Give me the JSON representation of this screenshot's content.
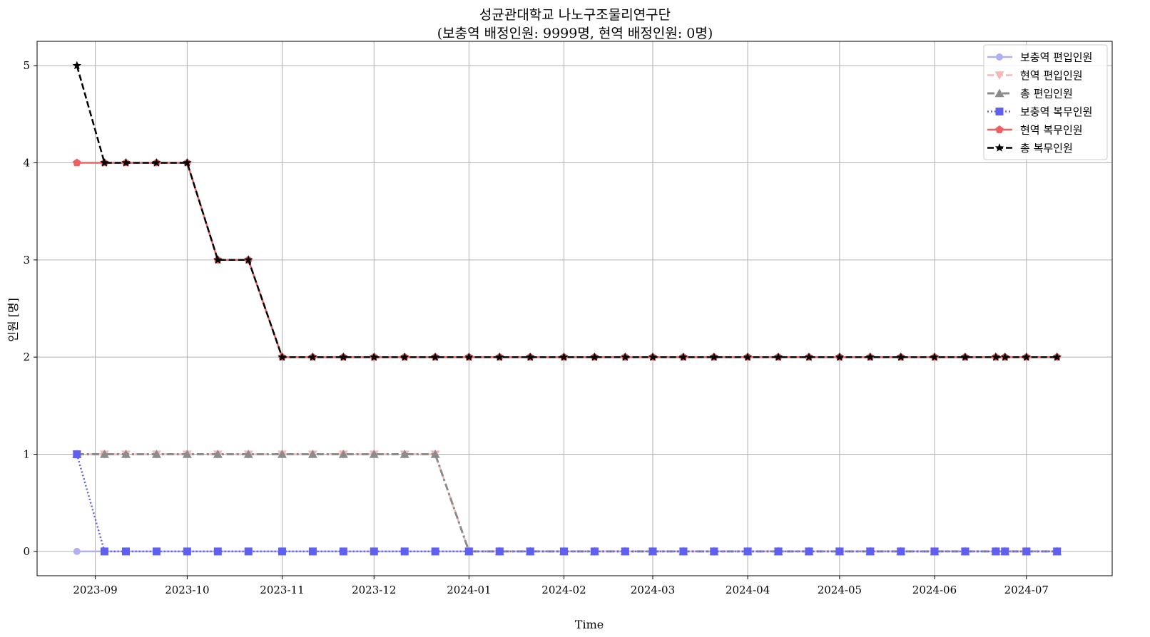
{
  "chart_data": {
    "type": "line",
    "title": "성균관대학교 나노구조물리연구단",
    "subtitle": "(보충역 배정인원: 9999명, 현역 배정인원: 0명)",
    "xlabel": "Time",
    "ylabel": "인원 [명]",
    "ylim": [
      -0.25,
      5.25
    ],
    "xlim": [
      "2023-08-13",
      "2024-07-29"
    ],
    "grid": true,
    "legend_position": "top-right",
    "x_ticks": [
      "2023-09-01",
      "2023-10-01",
      "2023-11-01",
      "2023-12-01",
      "2024-01-01",
      "2024-02-01",
      "2024-03-01",
      "2024-04-01",
      "2024-05-01",
      "2024-06-01",
      "2024-07-01"
    ],
    "x_tick_labels": [
      "2023-09",
      "2023-10",
      "2023-11",
      "2023-12",
      "2024-01",
      "2024-02",
      "2024-03",
      "2024-04",
      "2024-05",
      "2024-06",
      "2024-07"
    ],
    "y_ticks": [
      0,
      1,
      2,
      3,
      4,
      5
    ],
    "y_tick_labels": [
      "0",
      "1",
      "2",
      "3",
      "4",
      "5"
    ],
    "x": [
      "2023-08-26",
      "2023-09-04",
      "2023-09-11",
      "2023-09-21",
      "2023-10-01",
      "2023-10-11",
      "2023-10-21",
      "2023-11-01",
      "2023-11-11",
      "2023-11-21",
      "2023-12-01",
      "2023-12-11",
      "2023-12-21",
      "2024-01-01",
      "2024-01-11",
      "2024-01-21",
      "2024-02-01",
      "2024-02-11",
      "2024-02-21",
      "2024-03-01",
      "2024-03-11",
      "2024-03-21",
      "2024-04-01",
      "2024-04-11",
      "2024-04-21",
      "2024-05-01",
      "2024-05-11",
      "2024-05-21",
      "2024-06-01",
      "2024-06-11",
      "2024-06-21",
      "2024-06-24",
      "2024-07-01",
      "2024-07-11"
    ],
    "series": [
      {
        "name": "보충역 편입인원",
        "color": "#b0b0f0",
        "line_style": "solid",
        "marker": "circle",
        "values": [
          0,
          0,
          0,
          0,
          0,
          0,
          0,
          0,
          0,
          0,
          0,
          0,
          0,
          0,
          0,
          0,
          0,
          0,
          0,
          0,
          0,
          0,
          0,
          0,
          0,
          0,
          0,
          0,
          0,
          0,
          0,
          0,
          0,
          0
        ]
      },
      {
        "name": "현역 편입인원",
        "color": "#f4b8b8",
        "line_style": "dashed",
        "marker": "triangle-down",
        "values": [
          1,
          1,
          1,
          1,
          1,
          1,
          1,
          1,
          1,
          1,
          1,
          1,
          1,
          0,
          0,
          0,
          0,
          0,
          0,
          0,
          0,
          0,
          0,
          0,
          0,
          0,
          0,
          0,
          0,
          0,
          0,
          0,
          0,
          0
        ]
      },
      {
        "name": "총 편입인원",
        "color": "#8c8c8c",
        "line_style": "dashdot",
        "marker": "triangle-up",
        "values": [
          1,
          1,
          1,
          1,
          1,
          1,
          1,
          1,
          1,
          1,
          1,
          1,
          1,
          0,
          0,
          0,
          0,
          0,
          0,
          0,
          0,
          0,
          0,
          0,
          0,
          0,
          0,
          0,
          0,
          0,
          0,
          0,
          0,
          0
        ]
      },
      {
        "name": "보충역 복무인원",
        "color": "#6060f0",
        "line_style": "dotted",
        "marker": "square",
        "values": [
          1,
          0,
          0,
          0,
          0,
          0,
          0,
          0,
          0,
          0,
          0,
          0,
          0,
          0,
          0,
          0,
          0,
          0,
          0,
          0,
          0,
          0,
          0,
          0,
          0,
          0,
          0,
          0,
          0,
          0,
          0,
          0,
          0,
          0
        ]
      },
      {
        "name": "현역 복무인원",
        "color": "#f06060",
        "line_style": "solid",
        "marker": "pentagon",
        "values": [
          4,
          4,
          4,
          4,
          4,
          3,
          3,
          2,
          2,
          2,
          2,
          2,
          2,
          2,
          2,
          2,
          2,
          2,
          2,
          2,
          2,
          2,
          2,
          2,
          2,
          2,
          2,
          2,
          2,
          2,
          2,
          2,
          2,
          2
        ]
      },
      {
        "name": "총 복무인원",
        "color": "#000000",
        "line_style": "dashed",
        "marker": "star",
        "values": [
          5,
          4,
          4,
          4,
          4,
          3,
          3,
          2,
          2,
          2,
          2,
          2,
          2,
          2,
          2,
          2,
          2,
          2,
          2,
          2,
          2,
          2,
          2,
          2,
          2,
          2,
          2,
          2,
          2,
          2,
          2,
          2,
          2,
          2
        ]
      }
    ]
  }
}
